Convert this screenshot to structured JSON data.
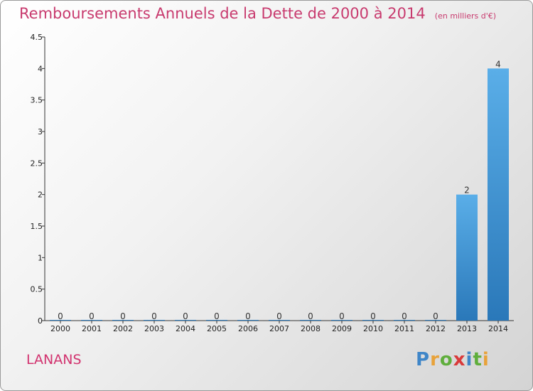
{
  "chart_data": {
    "type": "bar",
    "title": "Remboursements Annuels de la Dette de 2000 à 2014",
    "subtitle": "(en milliers d'€)",
    "categories": [
      "2000",
      "2001",
      "2002",
      "2003",
      "2004",
      "2005",
      "2006",
      "2007",
      "2008",
      "2009",
      "2010",
      "2011",
      "2012",
      "2013",
      "2014"
    ],
    "values": [
      0,
      0,
      0,
      0,
      0,
      0,
      0,
      0,
      0,
      0,
      0,
      0,
      0,
      2,
      4
    ],
    "value_labels": [
      "0",
      "0",
      "0",
      "0",
      "0",
      "0",
      "0",
      "0",
      "0",
      "0",
      "0",
      "0",
      "0",
      "2",
      "4"
    ],
    "y_ticks": [
      0,
      0.5,
      1,
      1.5,
      2,
      2.5,
      3,
      3.5,
      4,
      4.5
    ],
    "y_tick_labels": [
      "0",
      "0.5",
      "1",
      "1.5",
      "2",
      "2.5",
      "3",
      "3.5",
      "4",
      "4.5"
    ],
    "ylim": [
      0,
      4.5
    ],
    "xlabel": "",
    "ylabel": "",
    "grid": false,
    "bar_color": "#3b8fd6"
  },
  "commune": "LANANS",
  "logo": {
    "letters": [
      "P",
      "r",
      "o",
      "x",
      "i",
      "t",
      "i"
    ],
    "colors": [
      "#3f86c8",
      "#e8a23a",
      "#5fae3c",
      "#d93a3a",
      "#3f86c8",
      "#5fae3c",
      "#e8a23a"
    ]
  },
  "colors": {
    "title": "#c83a6e",
    "commune": "#d2336f"
  }
}
